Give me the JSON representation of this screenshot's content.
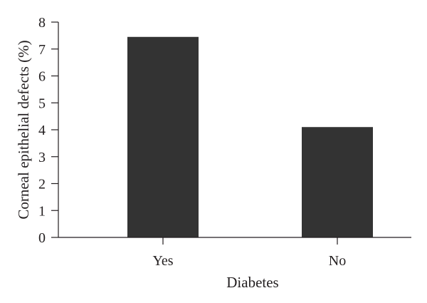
{
  "chart_data": {
    "type": "bar",
    "categories": [
      "Yes",
      "No"
    ],
    "values": [
      7.45,
      4.1
    ],
    "xlabel": "Diabetes",
    "ylabel": "Corneal epithelial defects (%)",
    "ylim": [
      0,
      8
    ],
    "yticks": [
      0,
      1,
      2,
      3,
      4,
      5,
      6,
      7,
      8
    ],
    "grid": false,
    "colors": {
      "bar": "#333333",
      "axis": "#231f20"
    }
  }
}
